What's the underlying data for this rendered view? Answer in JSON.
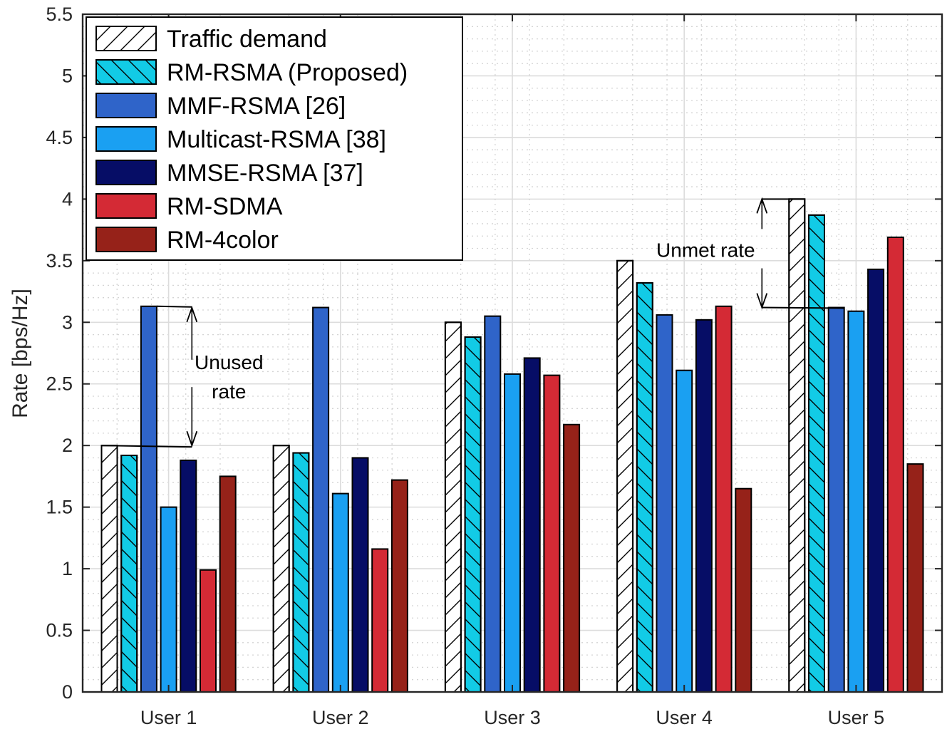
{
  "chart_data": {
    "type": "bar",
    "categories": [
      "User 1",
      "User 2",
      "User 3",
      "User 4",
      "User 5"
    ],
    "series": [
      {
        "name": "Traffic demand",
        "color": "#ffffff",
        "pattern": "hatch-forward",
        "values": [
          2.0,
          2.0,
          3.0,
          3.5,
          4.0
        ]
      },
      {
        "name": "RM-RSMA (Proposed)",
        "color": "#12cbe6",
        "pattern": "hatch-back",
        "values": [
          1.92,
          1.94,
          2.88,
          3.32,
          3.87
        ]
      },
      {
        "name": "MMF-RSMA [26]",
        "color": "#2f64c9",
        "pattern": "solid",
        "values": [
          3.13,
          3.12,
          3.05,
          3.06,
          3.12
        ]
      },
      {
        "name": "Multicast-RSMA [38]",
        "color": "#1aa0f2",
        "pattern": "solid",
        "values": [
          1.5,
          1.61,
          2.58,
          2.61,
          3.09
        ]
      },
      {
        "name": "MMSE-RSMA [37]",
        "color": "#060d66",
        "pattern": "solid",
        "values": [
          1.88,
          1.9,
          2.71,
          3.02,
          3.43
        ]
      },
      {
        "name": "RM-SDMA",
        "color": "#d42a35",
        "pattern": "solid",
        "values": [
          0.99,
          1.16,
          2.57,
          3.13,
          3.69
        ]
      },
      {
        "name": "RM-4color",
        "color": "#962219",
        "pattern": "solid",
        "values": [
          1.75,
          1.72,
          2.17,
          1.65,
          1.85
        ]
      }
    ],
    "title": "",
    "xlabel": "",
    "ylabel": "Rate [bps/Hz]",
    "ylim": [
      0,
      5.5
    ],
    "yticks": [
      0,
      0.5,
      1,
      1.5,
      2,
      2.5,
      3,
      3.5,
      4,
      4.5,
      5,
      5.5
    ],
    "ytick_labels": [
      "0",
      "0.5",
      "1",
      "1.5",
      "2",
      "2.5",
      "3",
      "3.5",
      "4",
      "4.5",
      "5",
      "5.5"
    ],
    "grid": true,
    "legend_position": "top-left",
    "annotations": [
      {
        "lines": [
          "Unused",
          "rate"
        ],
        "category": "User 1",
        "from": 2.0,
        "to": 3.13
      },
      {
        "lines": [
          "Unmet rate"
        ],
        "category": "User 5",
        "from": 3.12,
        "to": 4.0
      }
    ]
  }
}
